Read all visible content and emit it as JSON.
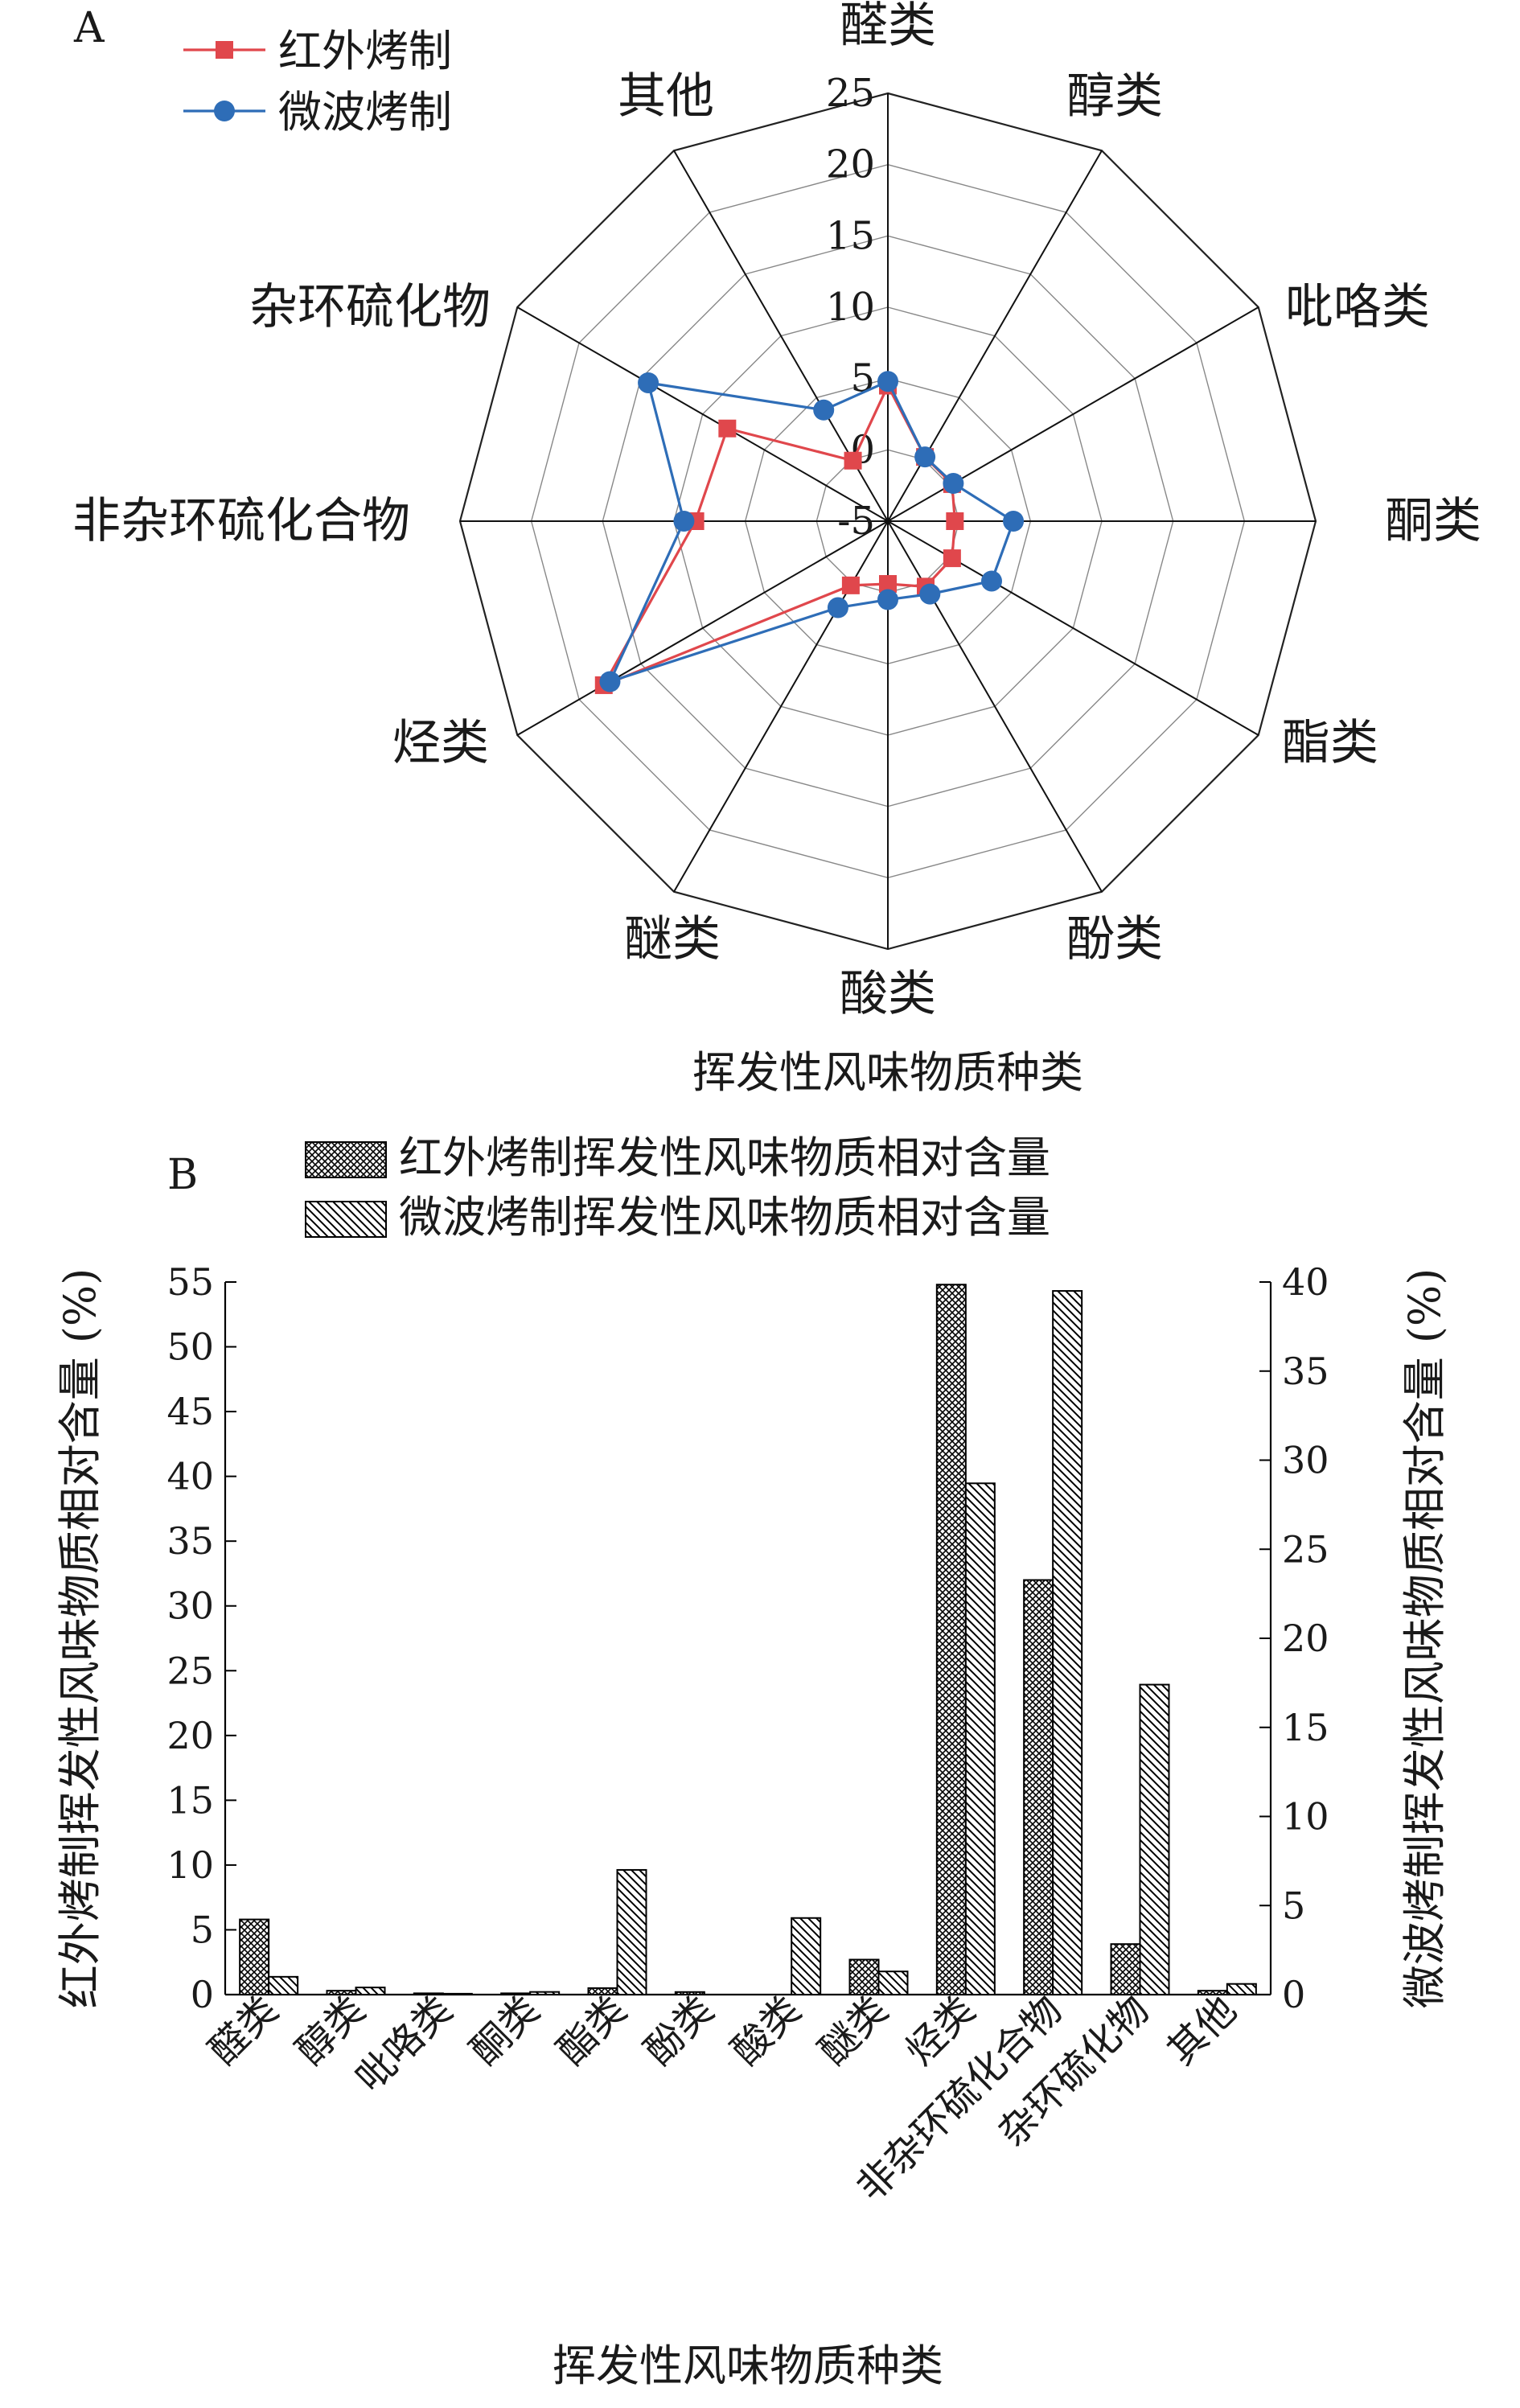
{
  "chart_data": [
    {
      "panel": "A",
      "type": "radar",
      "categories": [
        "醛类",
        "醇类",
        "吡咯类",
        "酮类",
        "酯类",
        "酚类",
        "酸类",
        "醚类",
        "烃类",
        "非杂环硫化合物",
        "杂环硫化物",
        "其他"
      ],
      "series": [
        {
          "name": "红外烤制",
          "color": "#e0474c",
          "marker": "square",
          "values": [
            4.5,
            0.2,
            0.2,
            -0.3,
            0.2,
            0.3,
            -0.6,
            0.2,
            18.0,
            8.5,
            8.0,
            -0.1
          ]
        },
        {
          "name": "微波烤制",
          "color": "#2e6db7",
          "marker": "circle",
          "values": [
            4.8,
            0.2,
            0.3,
            3.8,
            3.4,
            0.9,
            0.5,
            2.0,
            17.5,
            9.3,
            14.4,
            4.0
          ]
        }
      ],
      "rlim": [
        -5,
        25
      ],
      "rticks": [
        -5,
        0,
        5,
        10,
        15,
        20,
        25
      ],
      "xlabel": "挥发性风味物质种类"
    },
    {
      "panel": "B",
      "type": "bar",
      "categories": [
        "醛类",
        "醇类",
        "吡咯类",
        "酮类",
        "酯类",
        "酚类",
        "酸类",
        "醚类",
        "烃类",
        "非杂环硫化合物",
        "杂环硫化物",
        "其他"
      ],
      "series": [
        {
          "name": "红外烤制挥发性风味物质相对含量",
          "axis": "left",
          "pattern": "crosshatch",
          "values": [
            5.8,
            0.3,
            0.1,
            0.1,
            0.5,
            0.2,
            0.0,
            2.7,
            54.8,
            32.0,
            3.9,
            0.3
          ]
        },
        {
          "name": "微波烤制挥发性风味物质相对含量",
          "axis": "right",
          "pattern": "diagonal",
          "values": [
            1.0,
            0.4,
            0.05,
            0.15,
            7.0,
            0.0,
            4.3,
            1.3,
            28.7,
            39.5,
            17.4,
            0.6
          ]
        }
      ],
      "ylim_left": [
        0,
        55
      ],
      "yticks_left": [
        0,
        5,
        10,
        15,
        20,
        25,
        30,
        35,
        40,
        45,
        50,
        55
      ],
      "ylim_right": [
        0,
        40
      ],
      "yticks_right": [
        0,
        5,
        10,
        15,
        20,
        25,
        30,
        35,
        40
      ],
      "ylabel_left": "红外烤制挥发性风味物质相对含量 (%)",
      "ylabel_right": "微波烤制挥发性风味物质相对含量 (%)",
      "xlabel": "挥发性风味物质种类"
    }
  ]
}
